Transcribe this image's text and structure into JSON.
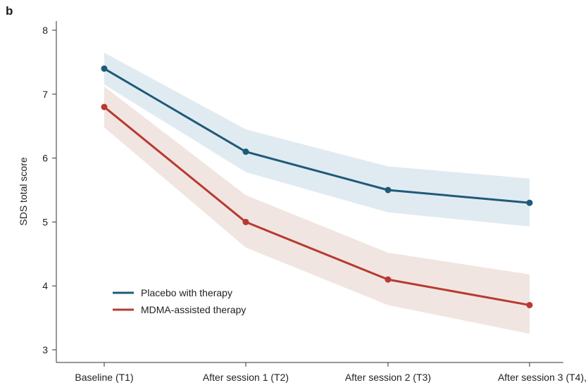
{
  "panel_label": "b",
  "chart_data": {
    "type": "line",
    "title": "",
    "xlabel": "",
    "ylabel": "SDS total score",
    "categories": [
      "Baseline (T1)",
      "After session 1 (T2)",
      "After session 2 (T3)",
      "After session 3 (T4),"
    ],
    "ylim": [
      3,
      8
    ],
    "yticks": [
      3,
      4,
      5,
      6,
      7,
      8
    ],
    "grid": false,
    "legend_position": "bottom-left",
    "series": [
      {
        "name": "Placebo with therapy",
        "color": "#1f5a7a",
        "band_color": "#dbe7ee",
        "values": [
          7.4,
          6.1,
          5.5,
          5.3
        ],
        "ci_lower": [
          7.15,
          5.78,
          5.15,
          4.93
        ],
        "ci_upper": [
          7.65,
          6.45,
          5.87,
          5.68
        ]
      },
      {
        "name": "MDMA-assisted therapy",
        "color": "#b73a32",
        "band_color": "#efe1dc",
        "values": [
          6.8,
          5.0,
          4.1,
          3.7
        ],
        "ci_lower": [
          6.48,
          4.6,
          3.7,
          3.25
        ],
        "ci_upper": [
          7.12,
          5.42,
          4.52,
          4.18
        ]
      }
    ]
  }
}
